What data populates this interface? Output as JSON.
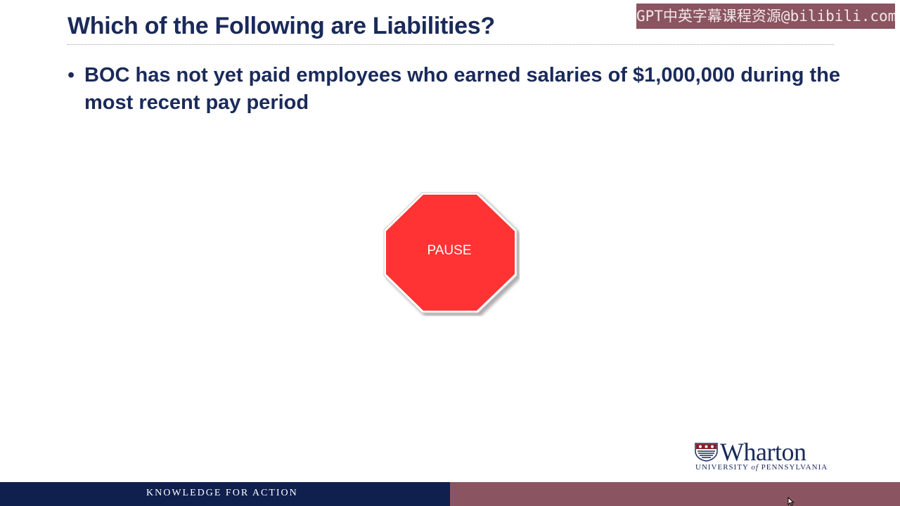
{
  "slide": {
    "title": "Which of the Following are Liabilities?",
    "bullets": [
      {
        "marker": "•",
        "text": "BOC has not yet paid employees who earned salaries of $1,000,000 during the most recent pay period"
      }
    ],
    "stop_sign": {
      "label": "PAUSE",
      "fill_color": "#ff3333"
    }
  },
  "watermark": {
    "text": "GPT中英字幕课程资源@bilibili.com"
  },
  "logo": {
    "name": "Wharton",
    "subtitle_part1": "UNIVERSITY ",
    "subtitle_part2": "of",
    "subtitle_part3": " PENNSYLVANIA"
  },
  "footer": {
    "tagline": "KNOWLEDGE FOR ACTION"
  },
  "colors": {
    "navy": "#1a2a5a",
    "footer_navy": "#0f1f4e",
    "maroon": "#8a5560",
    "stop_red": "#ff3333"
  }
}
